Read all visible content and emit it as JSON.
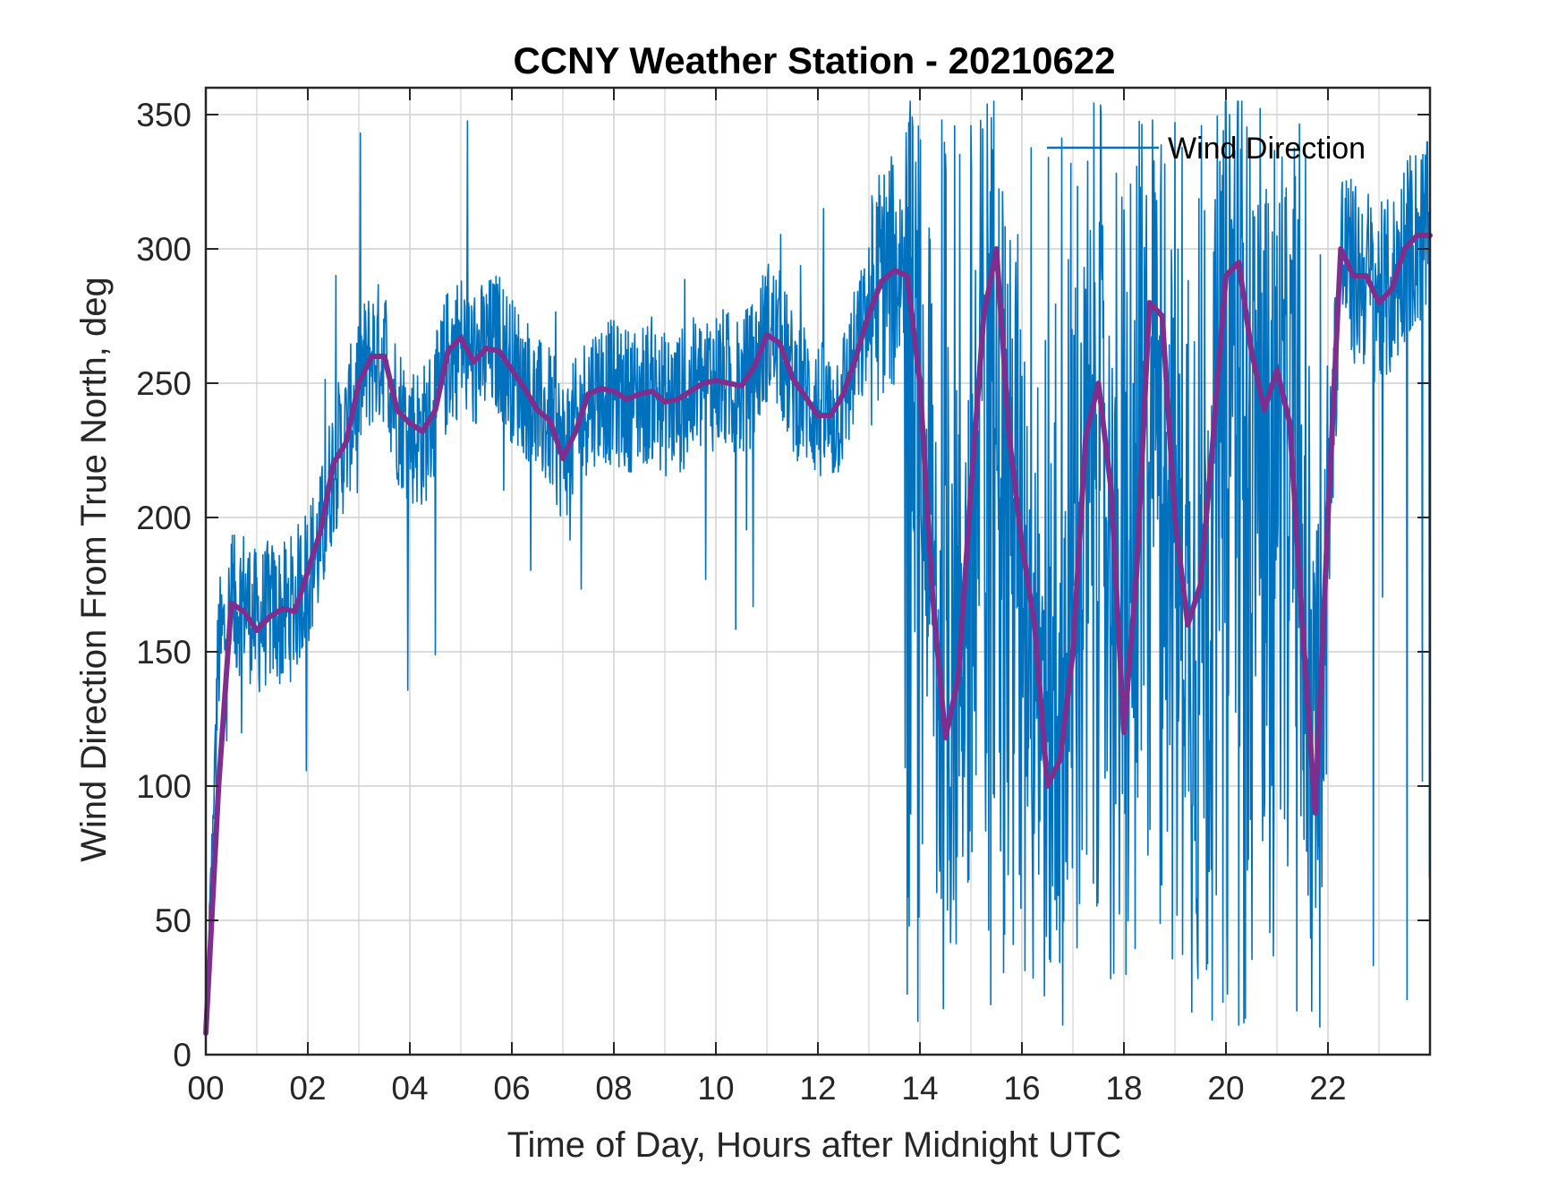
{
  "chart_data": {
    "type": "line",
    "title": "CCNY Weather Station - 20210622",
    "xlabel": "Time of Day, Hours after Midnight UTC",
    "ylabel": "Wind Direction From True North, deg",
    "xlim": [
      0,
      24
    ],
    "ylim": [
      0,
      360
    ],
    "x_ticks": [
      0,
      2,
      4,
      6,
      8,
      10,
      12,
      14,
      16,
      18,
      20,
      22
    ],
    "x_tick_labels": [
      "00",
      "02",
      "04",
      "06",
      "08",
      "10",
      "12",
      "14",
      "16",
      "18",
      "20",
      "22"
    ],
    "y_ticks": [
      0,
      50,
      100,
      150,
      200,
      250,
      300,
      350
    ],
    "y_tick_labels": [
      "0",
      "50",
      "100",
      "150",
      "200",
      "250",
      "300",
      "350"
    ],
    "grid": true,
    "legend": {
      "position": "top-right",
      "entries": [
        "Wind Direction"
      ]
    },
    "series": [
      {
        "name": "Wind Direction",
        "color": "#0072BD",
        "style": "thin noisy line",
        "sampling": "dense raw observations, high scatter (approx. ±30 deg before 13 h, full 0-360 swings 13.7-22 h)",
        "x": [
          0.0,
          0.25,
          0.5,
          0.75,
          1.0,
          1.25,
          1.5,
          1.75,
          2.0,
          2.25,
          2.5,
          2.75,
          3.0,
          3.25,
          3.5,
          3.75,
          4.0,
          4.25,
          4.5,
          4.75,
          5.0,
          5.25,
          5.5,
          5.75,
          6.0,
          6.25,
          6.5,
          6.75,
          7.0,
          7.25,
          7.5,
          7.75,
          8.0,
          8.25,
          8.5,
          8.75,
          9.0,
          9.25,
          9.5,
          9.75,
          10.0,
          10.25,
          10.5,
          10.75,
          11.0,
          11.25,
          11.5,
          11.75,
          12.0,
          12.25,
          12.5,
          12.75,
          13.0,
          13.25,
          13.5,
          13.75,
          14.0,
          14.25,
          14.5,
          14.75,
          15.0,
          15.25,
          15.5,
          15.75,
          16.0,
          16.25,
          16.5,
          16.75,
          17.0,
          17.25,
          17.5,
          17.75,
          18.0,
          18.25,
          18.5,
          18.75,
          19.0,
          19.25,
          19.5,
          19.75,
          20.0,
          20.25,
          20.5,
          20.75,
          21.0,
          21.25,
          21.5,
          21.75,
          22.0,
          22.25,
          22.5,
          22.75,
          23.0,
          23.25,
          23.5,
          23.75,
          24.0
        ],
        "values": [
          8,
          150,
          165,
          170,
          160,
          165,
          163,
          168,
          180,
          190,
          220,
          230,
          250,
          260,
          262,
          240,
          232,
          230,
          240,
          260,
          265,
          258,
          262,
          265,
          255,
          250,
          240,
          236,
          225,
          232,
          245,
          248,
          246,
          244,
          245,
          248,
          242,
          243,
          246,
          250,
          252,
          250,
          248,
          255,
          270,
          265,
          250,
          246,
          240,
          236,
          245,
          260,
          275,
          290,
          290,
          300,
          240,
          170,
          120,
          140,
          200,
          280,
          300,
          230,
          190,
          160,
          100,
          110,
          150,
          230,
          250,
          200,
          120,
          180,
          280,
          278,
          200,
          160,
          170,
          230,
          290,
          295,
          260,
          240,
          250,
          240,
          160,
          100,
          200,
          300,
          290,
          290,
          282,
          285,
          300,
          305,
          305
        ]
      },
      {
        "name": "",
        "color": "#7E2F8E",
        "style": "thick smoothed line",
        "x": [
          0.0,
          0.25,
          0.5,
          0.75,
          1.0,
          1.25,
          1.5,
          1.75,
          2.0,
          2.25,
          2.5,
          2.75,
          3.0,
          3.25,
          3.5,
          3.75,
          4.0,
          4.25,
          4.5,
          4.75,
          5.0,
          5.25,
          5.5,
          5.75,
          6.0,
          6.25,
          6.5,
          6.75,
          7.0,
          7.25,
          7.5,
          7.75,
          8.0,
          8.25,
          8.5,
          8.75,
          9.0,
          9.25,
          9.5,
          9.75,
          10.0,
          10.25,
          10.5,
          10.75,
          11.0,
          11.25,
          11.5,
          11.75,
          12.0,
          12.25,
          12.5,
          12.75,
          13.0,
          13.25,
          13.5,
          13.75,
          14.0,
          14.25,
          14.5,
          14.75,
          15.0,
          15.25,
          15.5,
          15.75,
          16.0,
          16.25,
          16.5,
          16.75,
          17.0,
          17.25,
          17.5,
          17.75,
          18.0,
          18.25,
          18.5,
          18.75,
          19.0,
          19.25,
          19.5,
          19.75,
          20.0,
          20.25,
          20.5,
          20.75,
          21.0,
          21.25,
          21.5,
          21.75,
          22.0,
          22.25,
          22.5,
          22.75,
          23.0,
          23.25,
          23.5,
          23.75,
          24.0
        ],
        "values": [
          8,
          100,
          168,
          165,
          158,
          163,
          166,
          165,
          180,
          195,
          220,
          228,
          250,
          260,
          260,
          240,
          235,
          232,
          240,
          262,
          267,
          258,
          263,
          262,
          255,
          248,
          240,
          236,
          222,
          232,
          246,
          248,
          247,
          244,
          246,
          247,
          243,
          244,
          247,
          250,
          251,
          250,
          249,
          256,
          268,
          265,
          252,
          245,
          238,
          238,
          246,
          260,
          276,
          288,
          292,
          290,
          250,
          170,
          118,
          140,
          210,
          275,
          300,
          230,
          190,
          160,
          100,
          110,
          150,
          230,
          250,
          210,
          120,
          180,
          280,
          275,
          200,
          160,
          175,
          230,
          290,
          295,
          262,
          240,
          255,
          235,
          160,
          90,
          200,
          300,
          290,
          290,
          280,
          285,
          300,
          305,
          305
        ]
      }
    ]
  }
}
